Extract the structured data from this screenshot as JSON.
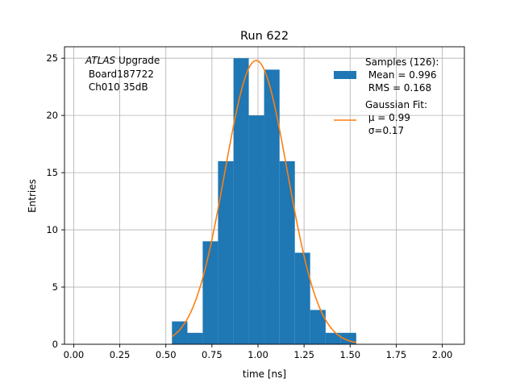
{
  "chart_data": {
    "type": "bar",
    "title": "Run 622",
    "xlabel": "time [ns]",
    "ylabel": "Entries",
    "xlim": [
      -0.05,
      2.12
    ],
    "ylim": [
      0,
      26
    ],
    "xticks": [
      0.0,
      0.25,
      0.5,
      0.75,
      1.0,
      1.25,
      1.5,
      1.75,
      2.0
    ],
    "xtick_labels": [
      "0.00",
      "0.25",
      "0.50",
      "0.75",
      "1.00",
      "1.25",
      "1.50",
      "1.75",
      "2.00"
    ],
    "yticks": [
      0,
      5,
      10,
      15,
      20,
      25
    ],
    "ytick_labels": [
      "0",
      "5",
      "10",
      "15",
      "20",
      "25"
    ],
    "grid": true,
    "bin_edges": [
      0.533,
      0.617,
      0.7,
      0.783,
      0.867,
      0.95,
      1.033,
      1.117,
      1.2,
      1.283,
      1.367,
      1.45,
      1.533
    ],
    "series": [
      {
        "kind": "histogram",
        "color": "#1f77b4",
        "values": [
          2,
          1,
          9,
          16,
          25,
          20,
          24,
          16,
          8,
          3,
          1,
          1
        ]
      },
      {
        "kind": "line",
        "color": "#ff7f0e",
        "gaussian": {
          "amplitude": 24.8,
          "mu": 0.99,
          "sigma": 0.17,
          "x_range": [
            0.533,
            1.533
          ]
        }
      }
    ],
    "legend": {
      "placement": "top-right",
      "entries": [
        {
          "lines": [
            "Samples (126):",
            " Mean = 0.996",
            " RMS = 0.168"
          ],
          "color": "#1f77b4",
          "marker": "patch"
        },
        {
          "lines": [
            "Gaussian Fit:",
            " μ = 0.99",
            " σ=0.17"
          ],
          "color": "#ff7f0e",
          "marker": "line"
        }
      ]
    },
    "annotation": {
      "italic": "ATLAS",
      "rest": " Upgrade",
      "lines": [
        " Board187722",
        " Ch010 35dB"
      ],
      "placement": "top-left"
    }
  }
}
